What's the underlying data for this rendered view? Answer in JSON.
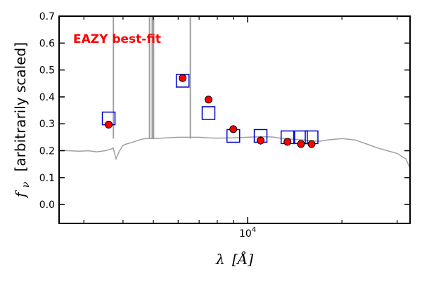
{
  "chart_data": {
    "type": "scatter",
    "title": "",
    "annotation": "EAZY best-fit",
    "annotation_color": "#ff0000",
    "xlabel_symbol": "λ",
    "xlabel_unit": "[Å]",
    "ylabel_symbol": "f",
    "ylabel_subscript": "ν",
    "ylabel_text": "[arbitrarily scaled]",
    "x_scale": "log",
    "xlim": [
      2500,
      33000
    ],
    "ylim": [
      -0.07,
      0.7
    ],
    "y_ticks": [
      0.0,
      0.1,
      0.2,
      0.3,
      0.4,
      0.5,
      0.6,
      0.7
    ],
    "y_tick_labels": [
      "0.0",
      "0.1",
      "0.2",
      "0.3",
      "0.4",
      "0.5",
      "0.6",
      "0.7"
    ],
    "x_tick_label_base": "10",
    "x_tick_label_exp": "4",
    "x_major_tick": 10000,
    "x_minor_ticks": [
      3000,
      4000,
      5000,
      6000,
      7000,
      8000,
      9000,
      20000,
      30000
    ],
    "grid": false,
    "colors": {
      "observed": "#ff0000",
      "model_photometry": "#0000cc",
      "template": "#a0a0a0"
    },
    "series": [
      {
        "kind": "observed",
        "x": [
          3600,
          6200,
          7500,
          9000,
          11000,
          13400,
          14800,
          16000
        ],
        "y": [
          0.297,
          0.47,
          0.39,
          0.28,
          0.238,
          0.233,
          0.225,
          0.225
        ],
        "yerr": [
          0.005,
          0.005,
          0.005,
          0.006,
          0.015,
          0.01,
          0.008,
          0.008
        ]
      },
      {
        "kind": "model_photometry",
        "x": [
          3600,
          6200,
          7500,
          9000,
          11000,
          13400,
          14800,
          16000
        ],
        "y": [
          0.32,
          0.46,
          0.34,
          0.255,
          0.255,
          0.25,
          0.25,
          0.25
        ]
      },
      {
        "kind": "template",
        "x": [
          2500,
          2700,
          2900,
          3100,
          3300,
          3500,
          3650,
          3720,
          3800,
          3900,
          4000,
          4100,
          4300,
          4500,
          4700,
          5000,
          5500,
          6000,
          6500,
          7000,
          7500,
          8000,
          9000,
          10000,
          11000,
          12000,
          13000,
          14000,
          15000,
          16000,
          17000,
          18000,
          20000,
          22000,
          24000,
          26000,
          28000,
          30000,
          32000,
          33000
        ],
        "y": [
          0.202,
          0.2,
          0.198,
          0.2,
          0.196,
          0.2,
          0.205,
          0.21,
          0.17,
          0.2,
          0.22,
          0.225,
          0.232,
          0.24,
          0.245,
          0.245,
          0.248,
          0.25,
          0.25,
          0.25,
          0.248,
          0.247,
          0.248,
          0.25,
          0.252,
          0.251,
          0.245,
          0.243,
          0.24,
          0.237,
          0.235,
          0.24,
          0.245,
          0.24,
          0.225,
          0.21,
          0.2,
          0.19,
          0.17,
          0.135
        ]
      },
      {
        "kind": "emission_lines",
        "x": [
          3727,
          4861,
          4959,
          5007,
          6563
        ],
        "y": [
          0.7,
          0.7,
          0.7,
          0.7,
          0.7
        ]
      }
    ]
  }
}
